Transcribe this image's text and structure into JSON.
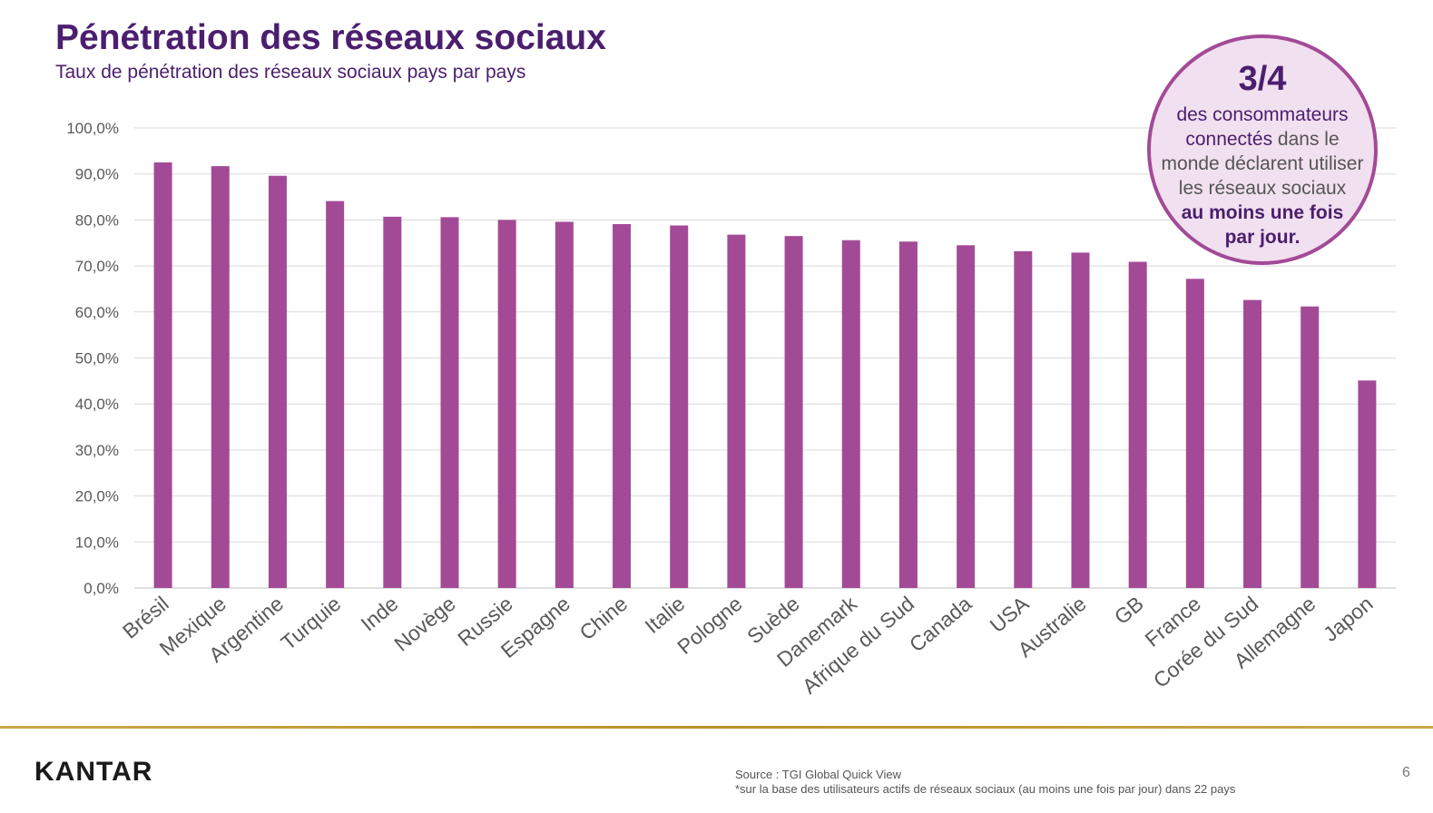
{
  "title": "Pénétration des réseaux sociaux",
  "subtitle": "Taux de pénétration des réseaux sociaux pays par pays",
  "callout": {
    "fraction": "3/4",
    "line1": "des consommateurs",
    "line2_highlight": "connectés",
    "line2_rest": " dans le",
    "line3": "monde déclarent utiliser",
    "line4": "les réseaux sociaux",
    "line5_bold": "au moins une fois",
    "line6_bold": "par jour."
  },
  "footer": {
    "logo": "KANTAR",
    "source_line1": "Source : TGI Global Quick View",
    "source_line2": "*sur la base des utilisateurs actifs de réseaux sociaux (au moins une fois par jour) dans 22 pays",
    "page_number": "6"
  },
  "colors": {
    "bar": "#a34a97",
    "title": "#4b1e6e",
    "gridline": "#d9d9d9",
    "axis_text": "#595959"
  },
  "chart_data": {
    "type": "bar",
    "title": "",
    "xlabel": "",
    "ylabel": "",
    "ylim": [
      0,
      100
    ],
    "ytick_step": 10,
    "ytick_labels": [
      "0,0%",
      "10,0%",
      "20,0%",
      "30,0%",
      "40,0%",
      "50,0%",
      "60,0%",
      "70,0%",
      "80,0%",
      "90,0%",
      "100,0%"
    ],
    "grid": true,
    "legend": "none",
    "categories": [
      "Brésil",
      "Mexique",
      "Argentine",
      "Turquie",
      "Inde",
      "Novège",
      "Russie",
      "Espagne",
      "Chine",
      "Italie",
      "Pologne",
      "Suède",
      "Danemark",
      "Afrique du Sud",
      "Canada",
      "USA",
      "Australie",
      "GB",
      "France",
      "Corée du Sud",
      "Allemagne",
      "Japon"
    ],
    "values": [
      92.5,
      91.7,
      89.6,
      84.1,
      80.7,
      80.6,
      80.0,
      79.6,
      79.1,
      78.8,
      76.8,
      76.5,
      75.6,
      75.3,
      74.5,
      73.2,
      72.9,
      70.9,
      67.2,
      62.6,
      61.2,
      45.1
    ]
  }
}
